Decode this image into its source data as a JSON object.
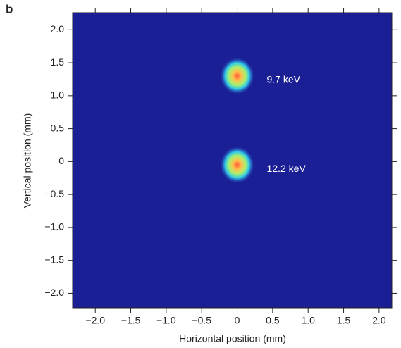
{
  "chart_data": {
    "type": "image",
    "panel_label": "b",
    "x_label": "Horizontal position (mm)",
    "y_label": "Vertical position (mm)",
    "xlim": [
      -2.32,
      2.18
    ],
    "ylim": [
      -2.22,
      2.26
    ],
    "xticks": [
      {
        "value": -2,
        "label": "−2.0"
      },
      {
        "value": -1.5,
        "label": "−1.5"
      },
      {
        "value": -1,
        "label": "−1.0"
      },
      {
        "value": -0.5,
        "label": "−0.5"
      },
      0,
      {
        "value": 0.5,
        "label": "0.5"
      },
      {
        "value": 1,
        "label": "1.0"
      },
      {
        "value": 1.5,
        "label": "1.5"
      },
      {
        "value": 2,
        "label": "2.0"
      }
    ],
    "yticks": [
      {
        "value": -2,
        "label": "−2.0"
      },
      {
        "value": -1.5,
        "label": "−1.5"
      },
      {
        "value": -1,
        "label": "−1.0"
      },
      {
        "value": -0.5,
        "label": "−0.5"
      },
      0,
      {
        "value": 0.5,
        "label": "0.5"
      },
      {
        "value": 1,
        "label": "1.0"
      },
      {
        "value": 1.5,
        "label": "1.5"
      },
      {
        "value": 2,
        "label": "2.0"
      }
    ],
    "background_color": "#1b1f96",
    "spots": [
      {
        "x": 0,
        "y": 1.3,
        "label": "9.7 keV"
      },
      {
        "x": 0,
        "y": -0.05,
        "label": "12.2 keV"
      }
    ]
  }
}
